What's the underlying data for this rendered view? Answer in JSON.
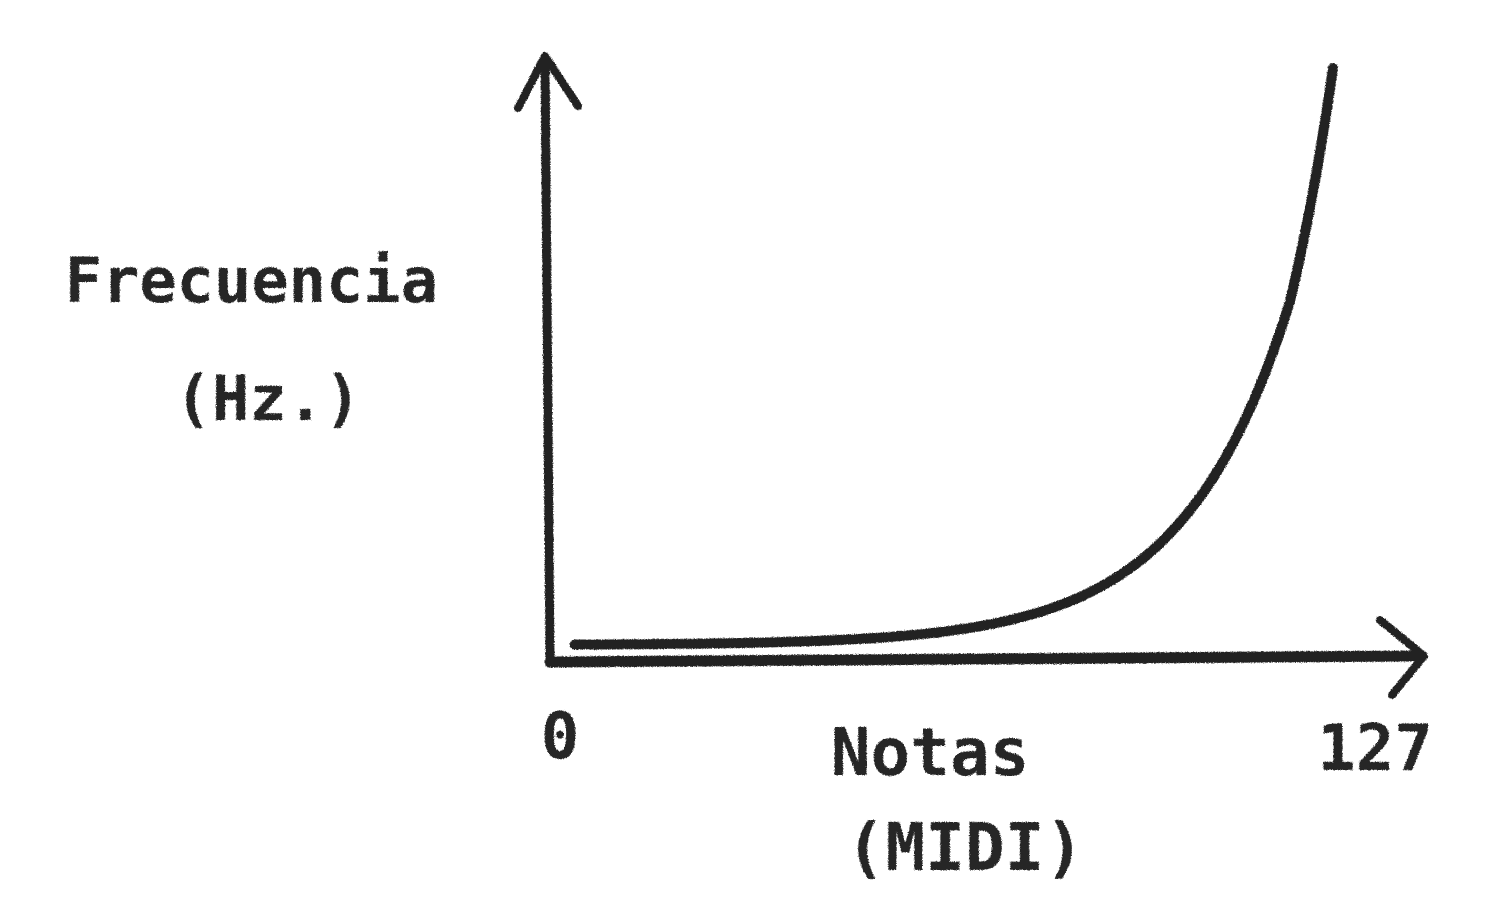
{
  "chart_data": {
    "type": "line",
    "title": "",
    "xlabel": "Notas\n(MIDI)",
    "ylabel": "Frecuencia\n(Hz.)",
    "xlim": [
      0,
      127
    ],
    "x_ticks": [
      "0",
      "127"
    ],
    "grid": false,
    "legend": "none",
    "scale": "exponential",
    "series": [
      {
        "x": [
          4,
          20,
          40,
          60,
          70,
          80,
          90,
          100,
          110,
          120,
          127
        ],
        "y": [
          8.7,
          22.0,
          69.3,
          220.0,
          392.0,
          698.5,
          1244.5,
          2217.5,
          3951.1,
          7040.0,
          11840.0
        ]
      }
    ],
    "colors": {
      "ink": "#232323",
      "background": "#ffffff"
    }
  }
}
